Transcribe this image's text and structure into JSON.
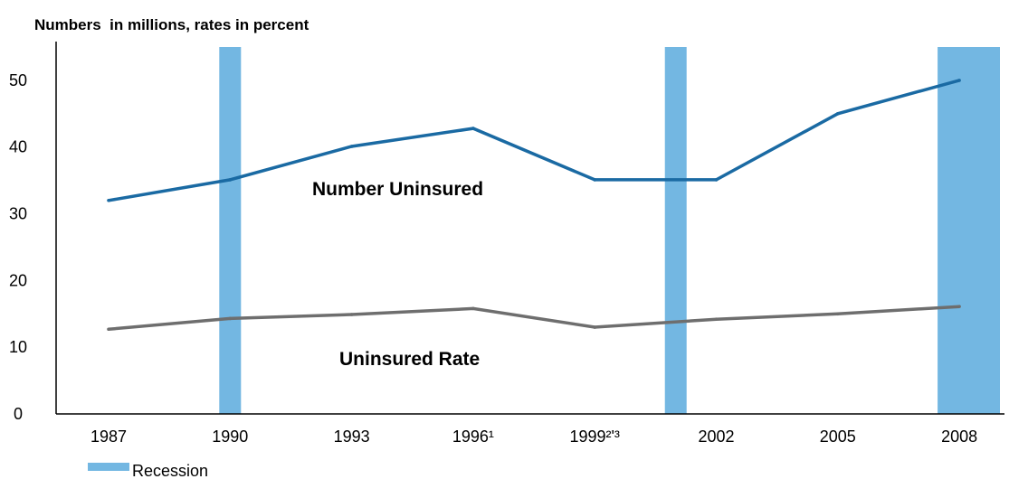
{
  "chart_data": {
    "type": "line",
    "title": "Numbers  in millions, rates in percent",
    "xlabel": "",
    "ylabel": "",
    "categories": [
      "1987",
      "1990",
      "1993",
      "1996¹",
      "1999²'³",
      "2002",
      "2005",
      "2008"
    ],
    "ylim": [
      0,
      55
    ],
    "yticks": [
      0,
      10,
      20,
      30,
      40,
      50
    ],
    "grid": false,
    "series": [
      {
        "name": "Number Uninsured",
        "color": "#1a6aa3",
        "values": [
          32.0,
          35.1,
          40.1,
          42.8,
          35.1,
          35.1,
          45.0,
          50.0
        ]
      },
      {
        "name": "Uninsured Rate",
        "color": "#6e6e6e",
        "values": [
          12.7,
          14.3,
          14.9,
          15.8,
          13.0,
          14.2,
          15.0,
          16.1
        ]
      }
    ],
    "recession_color": "#73b7e2",
    "recessions": [
      {
        "start": "1990",
        "end": "1990"
      },
      {
        "start": "2001",
        "end": "2001"
      },
      {
        "start": "2008",
        "end": "2008"
      }
    ],
    "legend": {
      "label": "Recession",
      "placement": "bottom-left"
    }
  }
}
